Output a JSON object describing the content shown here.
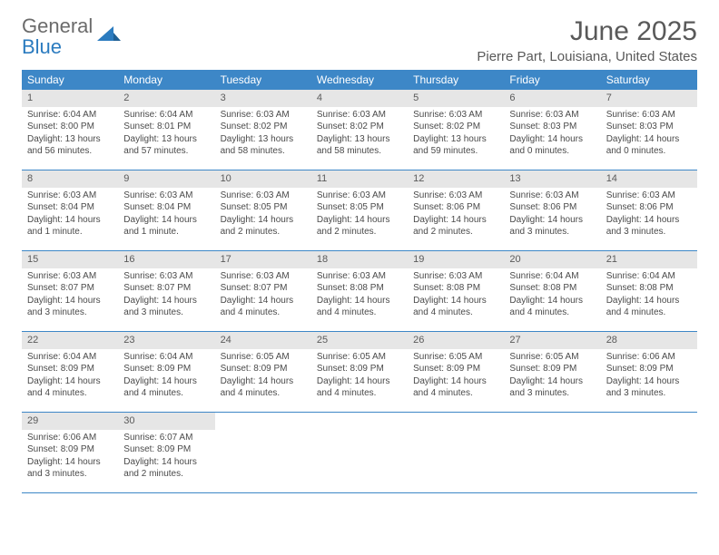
{
  "logo": {
    "text1": "General",
    "text2": "Blue"
  },
  "title": "June 2025",
  "location": "Pierre Part, Louisiana, United States",
  "colors": {
    "header_bg": "#3d87c7",
    "header_text": "#ffffff",
    "daynum_bg": "#e6e6e6",
    "text": "#595959",
    "rule": "#3d87c7"
  },
  "day_names": [
    "Sunday",
    "Monday",
    "Tuesday",
    "Wednesday",
    "Thursday",
    "Friday",
    "Saturday"
  ],
  "weeks": [
    [
      {
        "n": "1",
        "sr": "Sunrise: 6:04 AM",
        "ss": "Sunset: 8:00 PM",
        "dl": "Daylight: 13 hours and 56 minutes."
      },
      {
        "n": "2",
        "sr": "Sunrise: 6:04 AM",
        "ss": "Sunset: 8:01 PM",
        "dl": "Daylight: 13 hours and 57 minutes."
      },
      {
        "n": "3",
        "sr": "Sunrise: 6:03 AM",
        "ss": "Sunset: 8:02 PM",
        "dl": "Daylight: 13 hours and 58 minutes."
      },
      {
        "n": "4",
        "sr": "Sunrise: 6:03 AM",
        "ss": "Sunset: 8:02 PM",
        "dl": "Daylight: 13 hours and 58 minutes."
      },
      {
        "n": "5",
        "sr": "Sunrise: 6:03 AM",
        "ss": "Sunset: 8:02 PM",
        "dl": "Daylight: 13 hours and 59 minutes."
      },
      {
        "n": "6",
        "sr": "Sunrise: 6:03 AM",
        "ss": "Sunset: 8:03 PM",
        "dl": "Daylight: 14 hours and 0 minutes."
      },
      {
        "n": "7",
        "sr": "Sunrise: 6:03 AM",
        "ss": "Sunset: 8:03 PM",
        "dl": "Daylight: 14 hours and 0 minutes."
      }
    ],
    [
      {
        "n": "8",
        "sr": "Sunrise: 6:03 AM",
        "ss": "Sunset: 8:04 PM",
        "dl": "Daylight: 14 hours and 1 minute."
      },
      {
        "n": "9",
        "sr": "Sunrise: 6:03 AM",
        "ss": "Sunset: 8:04 PM",
        "dl": "Daylight: 14 hours and 1 minute."
      },
      {
        "n": "10",
        "sr": "Sunrise: 6:03 AM",
        "ss": "Sunset: 8:05 PM",
        "dl": "Daylight: 14 hours and 2 minutes."
      },
      {
        "n": "11",
        "sr": "Sunrise: 6:03 AM",
        "ss": "Sunset: 8:05 PM",
        "dl": "Daylight: 14 hours and 2 minutes."
      },
      {
        "n": "12",
        "sr": "Sunrise: 6:03 AM",
        "ss": "Sunset: 8:06 PM",
        "dl": "Daylight: 14 hours and 2 minutes."
      },
      {
        "n": "13",
        "sr": "Sunrise: 6:03 AM",
        "ss": "Sunset: 8:06 PM",
        "dl": "Daylight: 14 hours and 3 minutes."
      },
      {
        "n": "14",
        "sr": "Sunrise: 6:03 AM",
        "ss": "Sunset: 8:06 PM",
        "dl": "Daylight: 14 hours and 3 minutes."
      }
    ],
    [
      {
        "n": "15",
        "sr": "Sunrise: 6:03 AM",
        "ss": "Sunset: 8:07 PM",
        "dl": "Daylight: 14 hours and 3 minutes."
      },
      {
        "n": "16",
        "sr": "Sunrise: 6:03 AM",
        "ss": "Sunset: 8:07 PM",
        "dl": "Daylight: 14 hours and 3 minutes."
      },
      {
        "n": "17",
        "sr": "Sunrise: 6:03 AM",
        "ss": "Sunset: 8:07 PM",
        "dl": "Daylight: 14 hours and 4 minutes."
      },
      {
        "n": "18",
        "sr": "Sunrise: 6:03 AM",
        "ss": "Sunset: 8:08 PM",
        "dl": "Daylight: 14 hours and 4 minutes."
      },
      {
        "n": "19",
        "sr": "Sunrise: 6:03 AM",
        "ss": "Sunset: 8:08 PM",
        "dl": "Daylight: 14 hours and 4 minutes."
      },
      {
        "n": "20",
        "sr": "Sunrise: 6:04 AM",
        "ss": "Sunset: 8:08 PM",
        "dl": "Daylight: 14 hours and 4 minutes."
      },
      {
        "n": "21",
        "sr": "Sunrise: 6:04 AM",
        "ss": "Sunset: 8:08 PM",
        "dl": "Daylight: 14 hours and 4 minutes."
      }
    ],
    [
      {
        "n": "22",
        "sr": "Sunrise: 6:04 AM",
        "ss": "Sunset: 8:09 PM",
        "dl": "Daylight: 14 hours and 4 minutes."
      },
      {
        "n": "23",
        "sr": "Sunrise: 6:04 AM",
        "ss": "Sunset: 8:09 PM",
        "dl": "Daylight: 14 hours and 4 minutes."
      },
      {
        "n": "24",
        "sr": "Sunrise: 6:05 AM",
        "ss": "Sunset: 8:09 PM",
        "dl": "Daylight: 14 hours and 4 minutes."
      },
      {
        "n": "25",
        "sr": "Sunrise: 6:05 AM",
        "ss": "Sunset: 8:09 PM",
        "dl": "Daylight: 14 hours and 4 minutes."
      },
      {
        "n": "26",
        "sr": "Sunrise: 6:05 AM",
        "ss": "Sunset: 8:09 PM",
        "dl": "Daylight: 14 hours and 4 minutes."
      },
      {
        "n": "27",
        "sr": "Sunrise: 6:05 AM",
        "ss": "Sunset: 8:09 PM",
        "dl": "Daylight: 14 hours and 3 minutes."
      },
      {
        "n": "28",
        "sr": "Sunrise: 6:06 AM",
        "ss": "Sunset: 8:09 PM",
        "dl": "Daylight: 14 hours and 3 minutes."
      }
    ],
    [
      {
        "n": "29",
        "sr": "Sunrise: 6:06 AM",
        "ss": "Sunset: 8:09 PM",
        "dl": "Daylight: 14 hours and 3 minutes."
      },
      {
        "n": "30",
        "sr": "Sunrise: 6:07 AM",
        "ss": "Sunset: 8:09 PM",
        "dl": "Daylight: 14 hours and 2 minutes."
      },
      null,
      null,
      null,
      null,
      null
    ]
  ]
}
